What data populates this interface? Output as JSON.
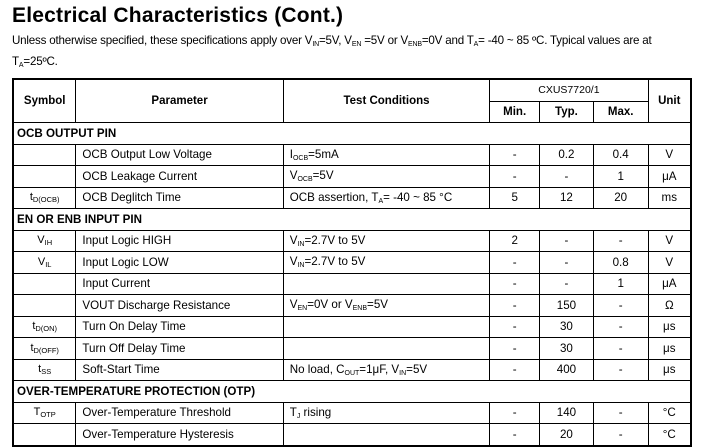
{
  "title": "Electrical Characteristics (Cont.)",
  "intro": {
    "a": "Unless otherwise specified, these specifications apply over V",
    "s1": "IN",
    "b": "=5V, V",
    "s2": "EN",
    "c": " =5V or V",
    "s3": "ENB",
    "d": "=0V and T",
    "s4": "A",
    "e": "= -40 ~ 85 ºC. Typical values are at T",
    "s5": "A",
    "f": "=25ºC."
  },
  "header": {
    "symbol": "Symbol",
    "parameter": "Parameter",
    "test_conditions": "Test Conditions",
    "part": "CXUS7720/1",
    "min": "Min.",
    "typ": "Typ.",
    "max": "Max.",
    "unit": "Unit"
  },
  "rows": [
    {
      "section": "OCB OUTPUT PIN"
    },
    {
      "sym": [
        "",
        ""
      ],
      "param": "OCB Output Low Voltage",
      "cond": [
        [
          "I",
          ""
        ],
        [
          "OCB",
          "s"
        ],
        [
          "=5mA",
          ""
        ]
      ],
      "min": "-",
      "typ": "0.2",
      "max": "0.4",
      "unit": "V"
    },
    {
      "sym": [
        "",
        ""
      ],
      "param": "OCB Leakage Current",
      "cond": [
        [
          "V",
          ""
        ],
        [
          "OCB",
          "s"
        ],
        [
          "=5V",
          ""
        ]
      ],
      "min": "-",
      "typ": "-",
      "max": "1",
      "unit": "μA"
    },
    {
      "sym": [
        "t",
        "D(OCB)"
      ],
      "param": "OCB Deglitch Time",
      "cond": [
        [
          "OCB assertion, T",
          ""
        ],
        [
          "A",
          "s"
        ],
        [
          "= -40 ~ 85 °C",
          ""
        ]
      ],
      "min": "5",
      "typ": "12",
      "max": "20",
      "unit": "ms"
    },
    {
      "section": "EN OR ENB INPUT PIN"
    },
    {
      "sym": [
        "V",
        "IH"
      ],
      "param": "Input Logic HIGH",
      "cond": [
        [
          "V",
          ""
        ],
        [
          "IN",
          "s"
        ],
        [
          "=2.7V to 5V",
          ""
        ]
      ],
      "min": "2",
      "typ": "-",
      "max": "-",
      "unit": "V"
    },
    {
      "sym": [
        "V",
        "IL"
      ],
      "param": "Input Logic LOW",
      "cond": [
        [
          "V",
          ""
        ],
        [
          "IN",
          "s"
        ],
        [
          "=2.7V to 5V",
          ""
        ]
      ],
      "min": "-",
      "typ": "-",
      "max": "0.8",
      "unit": "V"
    },
    {
      "sym": [
        "",
        ""
      ],
      "param": "Input Current",
      "cond": [],
      "min": "-",
      "typ": "-",
      "max": "1",
      "unit": "μA"
    },
    {
      "sym": [
        "",
        ""
      ],
      "param": "VOUT Discharge Resistance",
      "cond": [
        [
          "V",
          ""
        ],
        [
          "EN",
          "s"
        ],
        [
          "=0V or V",
          ""
        ],
        [
          "ENB",
          "s"
        ],
        [
          "=5V",
          ""
        ]
      ],
      "min": "-",
      "typ": "150",
      "max": "-",
      "unit": "Ω"
    },
    {
      "sym": [
        "t",
        "D(ON)"
      ],
      "param": "Turn On Delay Time",
      "cond": [],
      "min": "-",
      "typ": "30",
      "max": "-",
      "unit": "μs"
    },
    {
      "sym": [
        "t",
        "D(OFF)"
      ],
      "param": "Turn Off Delay Time",
      "cond": [],
      "min": "-",
      "typ": "30",
      "max": "-",
      "unit": "μs"
    },
    {
      "sym": [
        "t",
        "SS"
      ],
      "param": "Soft-Start Time",
      "cond": [
        [
          "No load, C",
          ""
        ],
        [
          "OUT",
          "s"
        ],
        [
          "=1μF, V",
          ""
        ],
        [
          "IN",
          "s"
        ],
        [
          "=5V",
          ""
        ]
      ],
      "min": "-",
      "typ": "400",
      "max": "-",
      "unit": "μs"
    },
    {
      "section": "OVER-TEMPERATURE PROTECTION (OTP)"
    },
    {
      "sym": [
        "T",
        "OTP"
      ],
      "param": "Over-Temperature Threshold",
      "cond": [
        [
          "T",
          ""
        ],
        [
          "J",
          "s"
        ],
        [
          " rising",
          ""
        ]
      ],
      "min": "-",
      "typ": "140",
      "max": "-",
      "unit": "°C"
    },
    {
      "sym": [
        "",
        ""
      ],
      "param": "Over-Temperature Hysteresis",
      "cond": [],
      "min": "-",
      "typ": "20",
      "max": "-",
      "unit": "°C"
    }
  ]
}
